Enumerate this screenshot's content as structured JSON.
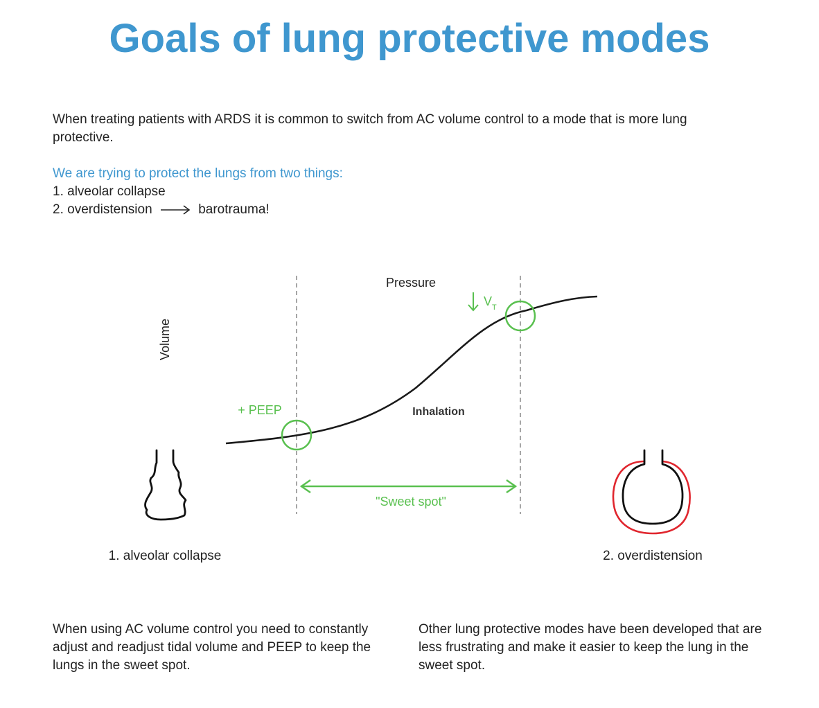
{
  "title": "Goals of lung protective modes",
  "intro": "When treating patients with ARDS it is common to switch from AC volume control to a mode that is more lung protective.",
  "goals": {
    "heading": "We are trying to protect the lungs from two things:",
    "item1": "1. alveolar collapse",
    "item2_left": "2. overdistension",
    "item2_right": "barotrauma!"
  },
  "diagram": {
    "x_label": "Pressure",
    "y_label": "Volume",
    "peep_label": "+ PEEP",
    "vt_label": "V",
    "vt_sub": "T",
    "curve_label": "Inhalation",
    "sweet_spot_label": "\"Sweet spot\"",
    "collapse_caption": "1. alveolar collapse",
    "overdistension_caption": "2. overdistension",
    "colors": {
      "green": "#59c04f",
      "red": "#e0262e",
      "curve": "#1a1a1a",
      "dash": "#888888"
    }
  },
  "bottom": {
    "left": "When using AC volume control you need to constantly adjust and readjust tidal volume and PEEP to keep the lungs in the sweet spot.",
    "right": "Other lung protective modes have been developed that are less frustrating and make it easier to keep the lung in the sweet spot."
  }
}
